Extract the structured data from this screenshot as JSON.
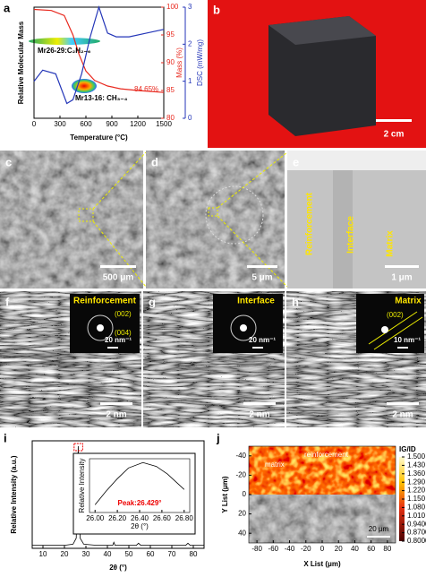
{
  "panels": {
    "a": {
      "label": "a",
      "ylabel": "Relative Molecular Mass",
      "xlabel": "Temperature (°C)",
      "mass_label": "Mass (%)",
      "dsc_label": "DSC (mW/mg)",
      "xlim": [
        0,
        1500
      ],
      "xticks": [
        0,
        300,
        600,
        900,
        1200,
        1500
      ],
      "mass_lim": [
        80,
        100
      ],
      "mass_ticks": [
        80,
        85,
        90,
        95,
        100
      ],
      "mass_color": "#e8281e",
      "dsc_lim": [
        0,
        3
      ],
      "dsc_ticks": [
        0,
        1,
        2,
        3
      ],
      "dsc_color": "#2436b8",
      "mass_x": [
        0,
        200,
        350,
        450,
        520,
        600,
        700,
        850,
        1000,
        1200,
        1500
      ],
      "mass": [
        99.6,
        99.4,
        98.5,
        95,
        91.5,
        88.5,
        86.8,
        85.8,
        85.3,
        85,
        84.65
      ],
      "dsc_x": [
        0,
        100,
        250,
        380,
        450,
        550,
        650,
        750,
        850,
        950,
        1100,
        1300,
        1500
      ],
      "dsc": [
        1,
        1.3,
        1.2,
        0.4,
        0.5,
        1.2,
        2.2,
        3,
        2.3,
        2.2,
        2.2,
        2.3,
        2.4
      ],
      "annotations": [
        "Mr26-29:C₂H₂₋₆",
        "Mr13-16: CH₃₋₄",
        "84.65%"
      ]
    },
    "b": {
      "label": "b",
      "scalebar": "2 cm"
    },
    "c": {
      "label": "c",
      "scalebar": "500 μm"
    },
    "d": {
      "label": "d",
      "scalebar": "5 μm"
    },
    "e": {
      "label": "e",
      "regions": [
        "Reinforcement",
        "Interface",
        "Matrix"
      ],
      "scalebar": "1 μm"
    },
    "f": {
      "label": "f",
      "title": "Reinforcement",
      "peaks": [
        "(002)",
        "(004)"
      ],
      "inset_scalebar": "20 nm⁻¹",
      "scalebar": "2 nm"
    },
    "g": {
      "label": "g",
      "title": "Interface",
      "inset_scalebar": "20 nm⁻¹",
      "scalebar": "2 nm"
    },
    "h": {
      "label": "h",
      "title": "Matrix",
      "peaks": [
        "(002)"
      ],
      "inset_scalebar": "10 nm⁻¹",
      "scalebar": "2 nm"
    },
    "i": {
      "label": "i",
      "ylabel": "Relative Intensity (a.u.)",
      "xlabel": "2θ (°)",
      "xlim": [
        5,
        85
      ],
      "xticks": [
        10,
        20,
        30,
        40,
        50,
        60,
        70,
        80
      ],
      "ylim": [
        0,
        100
      ],
      "x": [
        5,
        20,
        24,
        25.5,
        26.4,
        27.3,
        29,
        35,
        42.5,
        43,
        43.6,
        50,
        53.5,
        54.5,
        55.5,
        70,
        76.5,
        77.5,
        78.5,
        85
      ],
      "values": [
        3,
        3,
        4,
        10,
        100,
        10,
        4,
        3,
        3,
        6,
        3,
        3,
        3,
        5,
        3,
        3,
        3,
        5,
        3,
        3
      ],
      "color": "#000000",
      "inset": {
        "ylabel": "Relative Intensity",
        "xlabel": "2θ (°)",
        "xlim": [
          25.95,
          26.85
        ],
        "ylim": [
          30,
          100
        ],
        "xticks": [
          {
            "value": 26,
            "label": "26.00"
          },
          {
            "value": 26.2,
            "label": "26.20"
          },
          {
            "value": 26.4,
            "label": "26.40"
          },
          {
            "value": 26.6,
            "label": "26.60"
          },
          {
            "value": 26.8,
            "label": "26.80"
          }
        ],
        "x": [
          26,
          26.1,
          26.2,
          26.3,
          26.43,
          26.55,
          26.65,
          26.8
        ],
        "values": [
          40,
          58,
          74,
          88,
          95,
          90,
          80,
          60
        ],
        "annotation": "Peak:26.429°"
      }
    },
    "j": {
      "label": "j",
      "ylabel": "Y List (μm)",
      "xlabel": "X List (μm)",
      "xlim": [
        -90,
        90
      ],
      "xticks": [
        -80,
        -60,
        -40,
        -20,
        0,
        20,
        40,
        60,
        80
      ],
      "ylim": [
        -50,
        50
      ],
      "yticks": [
        -40,
        -20,
        0,
        20,
        40
      ],
      "colorbar_label": "IG/ID",
      "colorbar_lim": [
        0.8,
        1.5
      ],
      "colorbar_ticks": [
        {
          "value": 1.5,
          "label": "1.500"
        },
        {
          "value": 1.43,
          "label": "1.430"
        },
        {
          "value": 1.36,
          "label": "1.360"
        },
        {
          "value": 1.29,
          "label": "1.290"
        },
        {
          "value": 1.22,
          "label": "1.220"
        },
        {
          "value": 1.15,
          "label": "1.150"
        },
        {
          "value": 1.08,
          "label": "1.080"
        },
        {
          "value": 1.01,
          "label": "1.010"
        },
        {
          "value": 0.94,
          "label": "0.9400"
        },
        {
          "value": 0.87,
          "label": "0.8700"
        },
        {
          "value": 0.8,
          "label": "0.8000"
        }
      ],
      "annotations": [
        "matrix",
        "reinforcement"
      ],
      "scalebar": "20 μm"
    }
  }
}
